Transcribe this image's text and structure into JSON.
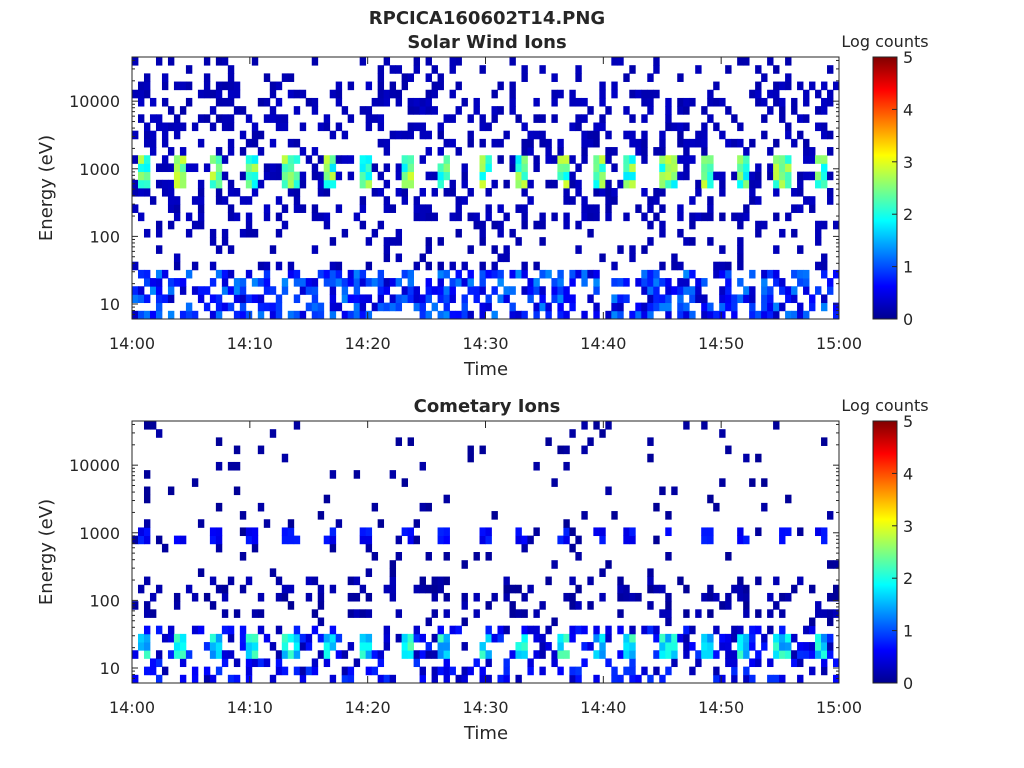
{
  "figure_title": "RPCICA160602T14.PNG",
  "chart_data": [
    {
      "type": "heatmap",
      "title": "Solar Wind Ions",
      "xlabel": "Time",
      "ylabel": "Energy (eV)",
      "x_range": [
        "14:00",
        "15:00"
      ],
      "x_ticks": [
        "14:00",
        "14:10",
        "14:20",
        "14:30",
        "14:40",
        "14:50",
        "15:00"
      ],
      "y_scale": "log",
      "ylim": [
        6,
        45000
      ],
      "y_ticks": [
        10,
        100,
        1000,
        10000
      ],
      "y_tick_labels": [
        "10",
        "100",
        "1000",
        "10000"
      ],
      "colorbar": {
        "label": "Log counts",
        "range": [
          0,
          5
        ],
        "ticks": [
          "0",
          "1",
          "2",
          "3",
          "4",
          "5"
        ],
        "colormap": "jet"
      },
      "features": {
        "sweep_times_min": [
          1,
          4,
          7.2,
          10.3,
          13.5,
          16.7,
          20,
          23.2,
          26.5,
          29.8,
          33,
          36.5,
          39.5,
          42.2,
          45.5,
          48.8,
          52,
          55.2,
          58.3
        ],
        "peak_energy_eV": [
          1200,
          800
        ],
        "peak_log_counts": 2.9,
        "background_log_counts": 0.2,
        "low_energy_band_eV": [
          8,
          35
        ]
      }
    },
    {
      "type": "heatmap",
      "title": "Cometary Ions",
      "xlabel": "Time",
      "ylabel": "Energy (eV)",
      "x_range": [
        "14:00",
        "15:00"
      ],
      "x_ticks": [
        "14:00",
        "14:10",
        "14:20",
        "14:30",
        "14:40",
        "14:50",
        "15:00"
      ],
      "y_scale": "log",
      "ylim": [
        6,
        45000
      ],
      "y_ticks": [
        10,
        100,
        1000,
        10000
      ],
      "y_tick_labels": [
        "10",
        "100",
        "1000",
        "10000"
      ],
      "colorbar": {
        "label": "Log counts",
        "range": [
          0,
          5
        ],
        "ticks": [
          "0",
          "1",
          "2",
          "3",
          "4",
          "5"
        ],
        "colormap": "jet"
      },
      "features": {
        "sweep_times_min": [
          1,
          4,
          7.2,
          10.3,
          13.5,
          16.7,
          20,
          23.2,
          26.5,
          29.8,
          33,
          36.5,
          39.5,
          42.2,
          45.5,
          48.8,
          52,
          55.2,
          58.3
        ],
        "peak_energy_eV": [
          20,
          30
        ],
        "peak_log_counts": 2.3,
        "mid_band_energy_eV": 800,
        "mid_band_log_counts": 0.8,
        "background_log_counts": 0.1
      }
    }
  ]
}
